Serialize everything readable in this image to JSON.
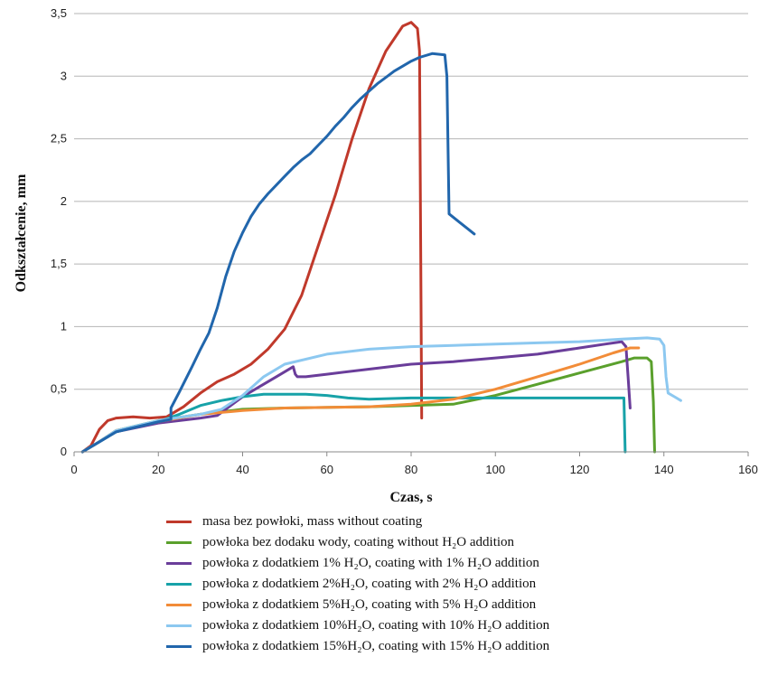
{
  "chart_data": {
    "type": "line",
    "title": "",
    "xlabel": "Czas, s",
    "ylabel": "Odkształcenie, mm",
    "xlim": [
      0,
      160
    ],
    "ylim": [
      0,
      3.5
    ],
    "x_ticks": [
      "0",
      "20",
      "40",
      "60",
      "80",
      "100",
      "120",
      "140",
      "160"
    ],
    "y_ticks": [
      "0",
      "0,5",
      "1",
      "1,5",
      "2",
      "2,5",
      "3",
      "3,5"
    ],
    "grid": "horizontal",
    "legend_position": "bottom",
    "series": [
      {
        "name": "masa bez powłoki,  mass without coating",
        "color": "#c0392b",
        "points": [
          [
            2,
            0
          ],
          [
            4,
            0.05
          ],
          [
            6,
            0.18
          ],
          [
            8,
            0.25
          ],
          [
            10,
            0.27
          ],
          [
            14,
            0.28
          ],
          [
            18,
            0.27
          ],
          [
            22,
            0.28
          ],
          [
            26,
            0.36
          ],
          [
            30,
            0.47
          ],
          [
            34,
            0.56
          ],
          [
            38,
            0.62
          ],
          [
            42,
            0.7
          ],
          [
            46,
            0.82
          ],
          [
            50,
            0.98
          ],
          [
            54,
            1.25
          ],
          [
            58,
            1.65
          ],
          [
            62,
            2.05
          ],
          [
            66,
            2.5
          ],
          [
            70,
            2.9
          ],
          [
            74,
            3.2
          ],
          [
            78,
            3.4
          ],
          [
            80,
            3.43
          ],
          [
            81.5,
            3.38
          ],
          [
            82,
            3.2
          ],
          [
            82.3,
            1.5
          ],
          [
            82.5,
            0.27
          ]
        ]
      },
      {
        "name": "powłoka bez dodaku wody, coating without H₂O addition",
        "color": "#5aa02c",
        "points": [
          [
            2,
            0
          ],
          [
            5,
            0.06
          ],
          [
            10,
            0.17
          ],
          [
            20,
            0.25
          ],
          [
            30,
            0.3
          ],
          [
            40,
            0.34
          ],
          [
            50,
            0.35
          ],
          [
            70,
            0.36
          ],
          [
            90,
            0.38
          ],
          [
            100,
            0.45
          ],
          [
            110,
            0.54
          ],
          [
            120,
            0.63
          ],
          [
            130,
            0.72
          ],
          [
            133,
            0.75
          ],
          [
            136,
            0.75
          ],
          [
            137,
            0.72
          ],
          [
            137.5,
            0.4
          ],
          [
            137.8,
            0
          ]
        ]
      },
      {
        "name": "powłoka z dodatkiem 1% H₂O,  coating with 1% H₂O addition",
        "color": "#6a3d9a",
        "points": [
          [
            2,
            0
          ],
          [
            5,
            0.06
          ],
          [
            10,
            0.16
          ],
          [
            20,
            0.23
          ],
          [
            30,
            0.27
          ],
          [
            34,
            0.29
          ],
          [
            36,
            0.34
          ],
          [
            40,
            0.44
          ],
          [
            44,
            0.52
          ],
          [
            48,
            0.6
          ],
          [
            52,
            0.68
          ],
          [
            52.5,
            0.62
          ],
          [
            53,
            0.6
          ],
          [
            55,
            0.6
          ],
          [
            60,
            0.62
          ],
          [
            70,
            0.66
          ],
          [
            80,
            0.7
          ],
          [
            90,
            0.72
          ],
          [
            100,
            0.75
          ],
          [
            110,
            0.78
          ],
          [
            120,
            0.83
          ],
          [
            126,
            0.86
          ],
          [
            130,
            0.88
          ],
          [
            131,
            0.84
          ],
          [
            131.5,
            0.6
          ],
          [
            132,
            0.35
          ]
        ]
      },
      {
        "name": "powłoka z dodatkiem 2%H₂O,  coating with 2% H₂O addition",
        "color": "#17a2a8",
        "points": [
          [
            2,
            0
          ],
          [
            5,
            0.06
          ],
          [
            10,
            0.16
          ],
          [
            20,
            0.24
          ],
          [
            25,
            0.3
          ],
          [
            30,
            0.37
          ],
          [
            35,
            0.41
          ],
          [
            40,
            0.44
          ],
          [
            45,
            0.46
          ],
          [
            50,
            0.46
          ],
          [
            55,
            0.46
          ],
          [
            60,
            0.45
          ],
          [
            65,
            0.43
          ],
          [
            70,
            0.42
          ],
          [
            80,
            0.43
          ],
          [
            100,
            0.43
          ],
          [
            120,
            0.43
          ],
          [
            130,
            0.43
          ],
          [
            130.5,
            0.43
          ],
          [
            130.8,
            0
          ]
        ]
      },
      {
        "name": "powłoka z dodatkiem 5%H₂O,  coating with 5% H₂O addition",
        "color": "#f28c38",
        "points": [
          [
            2,
            0
          ],
          [
            5,
            0.06
          ],
          [
            10,
            0.17
          ],
          [
            20,
            0.24
          ],
          [
            30,
            0.3
          ],
          [
            40,
            0.33
          ],
          [
            50,
            0.35
          ],
          [
            70,
            0.36
          ],
          [
            80,
            0.38
          ],
          [
            90,
            0.42
          ],
          [
            100,
            0.5
          ],
          [
            110,
            0.6
          ],
          [
            120,
            0.7
          ],
          [
            128,
            0.79
          ],
          [
            132,
            0.83
          ],
          [
            134,
            0.83
          ]
        ]
      },
      {
        "name": "powłoka z dodatkiem 10%H₂O,  coating with 10% H₂O addition",
        "color": "#8cc8f0",
        "points": [
          [
            2,
            0
          ],
          [
            5,
            0.06
          ],
          [
            10,
            0.17
          ],
          [
            20,
            0.25
          ],
          [
            30,
            0.3
          ],
          [
            35,
            0.34
          ],
          [
            40,
            0.45
          ],
          [
            45,
            0.6
          ],
          [
            50,
            0.7
          ],
          [
            60,
            0.78
          ],
          [
            70,
            0.82
          ],
          [
            80,
            0.84
          ],
          [
            90,
            0.85
          ],
          [
            100,
            0.86
          ],
          [
            110,
            0.87
          ],
          [
            120,
            0.88
          ],
          [
            130,
            0.9
          ],
          [
            136,
            0.91
          ],
          [
            139,
            0.9
          ],
          [
            140,
            0.85
          ],
          [
            140.5,
            0.6
          ],
          [
            141,
            0.47
          ],
          [
            142.5,
            0.44
          ],
          [
            144,
            0.41
          ]
        ]
      },
      {
        "name": "powłoka z dodatkiem 15%H₂O,  coating with 15% H₂O addition",
        "color": "#2166ac",
        "points": [
          [
            2,
            0
          ],
          [
            5,
            0.06
          ],
          [
            10,
            0.16
          ],
          [
            20,
            0.24
          ],
          [
            23,
            0.26
          ],
          [
            23,
            0.35
          ],
          [
            25,
            0.48
          ],
          [
            28,
            0.68
          ],
          [
            30,
            0.82
          ],
          [
            32,
            0.95
          ],
          [
            34,
            1.15
          ],
          [
            36,
            1.4
          ],
          [
            38,
            1.6
          ],
          [
            40,
            1.75
          ],
          [
            42,
            1.88
          ],
          [
            44,
            1.98
          ],
          [
            46,
            2.06
          ],
          [
            48,
            2.13
          ],
          [
            50,
            2.2
          ],
          [
            52,
            2.27
          ],
          [
            54,
            2.33
          ],
          [
            56,
            2.38
          ],
          [
            58,
            2.45
          ],
          [
            60,
            2.52
          ],
          [
            62,
            2.6
          ],
          [
            64,
            2.67
          ],
          [
            66,
            2.75
          ],
          [
            68,
            2.82
          ],
          [
            70,
            2.88
          ],
          [
            72,
            2.94
          ],
          [
            74,
            2.99
          ],
          [
            76,
            3.04
          ],
          [
            78,
            3.08
          ],
          [
            80,
            3.12
          ],
          [
            82,
            3.15
          ],
          [
            85,
            3.18
          ],
          [
            88,
            3.17
          ],
          [
            88.5,
            3
          ],
          [
            89,
            1.9
          ],
          [
            92,
            1.82
          ],
          [
            95,
            1.74
          ]
        ]
      }
    ]
  }
}
